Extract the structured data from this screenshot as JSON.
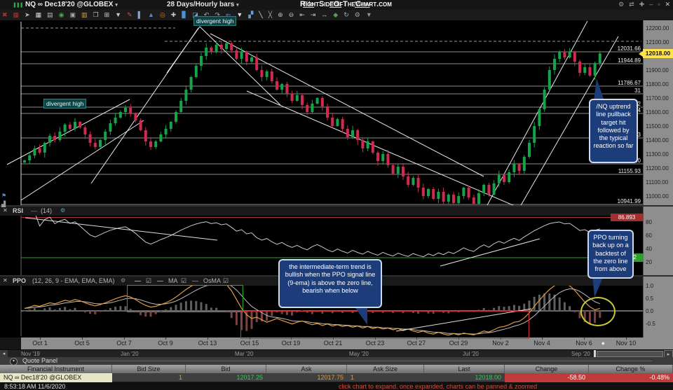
{
  "window": {
    "symbol_button": "NQ ∞ Dec18'20 @GLOBEX",
    "timeframe_button": "28 Days/Hourly bars",
    "dropdown_glyph": "▾",
    "menus": [
      "File",
      "Edit",
      "View"
    ],
    "logo": "RightSideOfTheChart.com",
    "window_icons": [
      {
        "name": "settings-icon",
        "glyph": "⚙"
      },
      {
        "name": "link-icon",
        "glyph": "⇄"
      },
      {
        "name": "pin-icon",
        "glyph": "✚"
      },
      {
        "name": "minimize-icon",
        "glyph": "–"
      },
      {
        "name": "restore-icon",
        "glyph": "▫"
      },
      {
        "name": "close-icon",
        "glyph": "✕"
      }
    ]
  },
  "toolbar": {
    "icons": [
      {
        "name": "delete-icon",
        "glyph": "✖",
        "color": "#b03030"
      },
      {
        "name": "grid-red-icon",
        "glyph": "▦",
        "color": "#b03030"
      },
      {
        "name": "pointer-icon",
        "glyph": "➤",
        "color": "#b8b8b8"
      },
      {
        "name": "grid-icon",
        "glyph": "▦",
        "color": "#d8d8d8"
      },
      {
        "name": "print-icon",
        "glyph": "▤",
        "color": "#b8b8b8"
      },
      {
        "name": "globe-icon",
        "glyph": "◉",
        "color": "#5a9a5a"
      },
      {
        "name": "camera-icon",
        "glyph": "▣",
        "color": "#a8a8a8"
      },
      {
        "name": "notebook-icon",
        "glyph": "▥",
        "color": "#caa84a"
      },
      {
        "name": "pages-icon",
        "glyph": "❐",
        "color": "#a8c0d8"
      },
      {
        "name": "layout-grid-icon",
        "glyph": "⊞",
        "color": "#d0d0d0"
      },
      {
        "name": "dropdown-icon",
        "glyph": "▼",
        "color": "#c8c8c8"
      },
      {
        "name": "edit-note-icon",
        "glyph": "✎",
        "color": "#d05050"
      },
      {
        "name": "volume-bars-icon",
        "glyph": "▌",
        "color": "#88a8c8"
      },
      {
        "name": "indicator-icon",
        "glyph": "▲",
        "color": "#4a90d9"
      },
      {
        "name": "target-icon",
        "glyph": "◎",
        "color": "#d08030"
      },
      {
        "name": "crosshair-icon",
        "glyph": "✚",
        "color": "#c8c8c8"
      },
      {
        "name": "column-chart-icon",
        "glyph": "▊",
        "color": "#4a90d9"
      },
      {
        "name": "area-chart-icon",
        "glyph": "◪",
        "color": "#7ab0e0"
      },
      {
        "name": "undo-icon",
        "glyph": "↶",
        "color": "#9ab0c8"
      },
      {
        "name": "redo-icon",
        "glyph": "↷",
        "color": "#9ab0c8"
      },
      {
        "name": "back-arrow-icon",
        "glyph": "⇐",
        "color": "#4a90d9"
      },
      {
        "name": "filter-icon",
        "glyph": "▼",
        "color": "#e0e0e0"
      },
      {
        "name": "chart-type-icon",
        "glyph": "▞",
        "color": "#6aa0d0"
      },
      {
        "name": "trendline-icon",
        "glyph": "╲",
        "color": "#e8e8e8"
      },
      {
        "name": "ray-icon",
        "glyph": "╳",
        "color": "#b0b0b0"
      },
      {
        "name": "zoom-in-icon",
        "glyph": "⊕",
        "color": "#c0c0c0"
      },
      {
        "name": "zoom-out-icon",
        "glyph": "⊖",
        "color": "#c0c0c0"
      },
      {
        "name": "expand-left-icon",
        "glyph": "⇤",
        "color": "#c0c0c0"
      },
      {
        "name": "expand-right-icon",
        "glyph": "⇥",
        "color": "#c0c0c0"
      },
      {
        "name": "fit-width-icon",
        "glyph": "↔",
        "color": "#c0c0c0"
      },
      {
        "name": "shapes-icon",
        "glyph": "◆",
        "color": "#5a9a5a"
      },
      {
        "name": "refresh-icon",
        "glyph": "↻",
        "color": "#9ab0c8"
      },
      {
        "name": "settings-wrench-icon",
        "glyph": "⚙",
        "color": "#a0a0a0"
      },
      {
        "name": "more-dropdown-icon",
        "glyph": "▼",
        "color": "#909090"
      }
    ]
  },
  "chart_data": [
    {
      "type": "candlestick",
      "title": "NQ ∞ Dec18'20 @GLOBEX, 28 Days/Hourly bars",
      "x_tick_labels": [
        "Oct 1",
        "Oct 5",
        "Oct 7",
        "Oct 9",
        "Oct 13",
        "Oct 15",
        "Oct 19",
        "Oct 21",
        "Oct 23",
        "Oct 27",
        "Oct 29",
        "Nov 2",
        "Nov 4",
        "Nov 6",
        "Nov 10"
      ],
      "y_axis_ticks": [
        12200,
        12100,
        12000,
        11900,
        11800,
        11700,
        11600,
        11500,
        11400,
        11300,
        11200,
        11100,
        11000
      ],
      "ylim": [
        10900,
        12255
      ],
      "closes": [
        11255,
        11290,
        11340,
        11310,
        11380,
        11430,
        11400,
        11460,
        11510,
        11480,
        11530,
        11490,
        11440,
        11380,
        11350,
        11400,
        11460,
        11520,
        11560,
        11600,
        11630,
        11590,
        11540,
        11470,
        11390,
        11350,
        11390,
        11440,
        11480,
        11530,
        11600,
        11680,
        11760,
        11850,
        11930,
        12000,
        12060,
        12030,
        12080,
        12050,
        12090,
        12040,
        11980,
        12030,
        11960,
        11990,
        11900,
        11850,
        11890,
        11820,
        11760,
        11800,
        11730,
        11680,
        11720,
        11650,
        11600,
        11660,
        11700,
        11640,
        11560,
        11500,
        11550,
        11480,
        11420,
        11470,
        11400,
        11340,
        11390,
        11310,
        11250,
        11300,
        11220,
        11160,
        11210,
        11140,
        11080,
        11130,
        11060,
        11000,
        11050,
        10980,
        11030,
        10960,
        11010,
        10950,
        11000,
        11060,
        10990,
        10945,
        11020,
        11080,
        11010,
        11090,
        11150,
        11100,
        11170,
        11230,
        11180,
        11280,
        11380,
        11500,
        11620,
        11760,
        11900,
        11980,
        12030,
        11990,
        12030,
        11960,
        11880,
        11920,
        11860,
        11950,
        12018
      ],
      "current_price_label": "12018.00",
      "price_level_labels": [
        {
          "label": "12031.66",
          "y": 74
        },
        {
          "label": "11944.89",
          "y": 91
        },
        {
          "label": "11786.67",
          "y": 123
        },
        {
          "label": "31",
          "y": 134,
          "partial": true
        },
        {
          "label": "82",
          "y": 153,
          "partial": true
        },
        {
          "label": "34",
          "y": 162,
          "partial": true
        },
        {
          "label": "93",
          "y": 197,
          "partial": true
        },
        {
          "label": "11228.10",
          "y": 234
        },
        {
          "label": "11155.93",
          "y": 249
        },
        {
          "label": "10941.99",
          "y": 292
        }
      ],
      "trendlines": [
        [
          10,
          206,
          185,
          113
        ],
        [
          30,
          257,
          205,
          143
        ],
        [
          130,
          233,
          283,
          11
        ],
        [
          238,
          75,
          285,
          9
        ],
        [
          285,
          9,
          400,
          121
        ],
        [
          300,
          19,
          690,
          223
        ],
        [
          352,
          101,
          748,
          271
        ],
        [
          695,
          264,
          838,
          1
        ],
        [
          742,
          266,
          882,
          23
        ]
      ],
      "dashed_lines": [
        [
          30,
          11,
          250,
          11
        ],
        [
          235,
          30,
          915,
          30
        ]
      ]
    },
    {
      "type": "line",
      "name": "RSI",
      "params": "(14)",
      "legend_dash": "—",
      "y_axis_ticks": [
        80,
        60,
        40,
        20
      ],
      "high_level_label": "86.893",
      "green_level_label": "26.82",
      "source": "computed from price closes, period 14",
      "trendlines": [
        [
          36,
          16,
          310,
          48
        ],
        [
          628,
          85,
          770,
          46
        ]
      ]
    },
    {
      "type": "line+histogram",
      "name": "PPO",
      "params": "(12, 26, 9 - EMA, EMA, EMA)",
      "ma_label": "MA",
      "osma_label": "OsMA",
      "legend_dash": "—",
      "y_axis_ticks": [
        "1.0",
        "0.5",
        "0.0",
        "-0.5"
      ],
      "values": [
        0.1,
        0.15,
        0.22,
        0.18,
        0.25,
        0.32,
        0.28,
        0.35,
        0.42,
        0.38,
        0.45,
        0.4,
        0.32,
        0.25,
        0.2,
        0.25,
        0.32,
        0.4,
        0.48,
        0.55,
        0.6,
        0.55,
        0.45,
        0.32,
        0.22,
        0.15,
        0.18,
        0.25,
        0.32,
        0.42,
        0.55,
        0.7,
        0.85,
        0.98,
        1.08,
        1.15,
        1.18,
        1.12,
        1.15,
        1.1,
        1.05,
        0.8,
        0.45,
        0.1,
        -0.15,
        -0.3,
        -0.25,
        -0.35,
        -0.45,
        -0.38,
        -0.3,
        -0.38,
        -0.45,
        -0.52,
        -0.45,
        -0.4,
        -0.48,
        -0.55,
        -0.5,
        -0.58,
        -0.52,
        -0.6,
        -0.55,
        -0.62,
        -0.58,
        -0.65,
        -0.6,
        -0.68,
        -0.62,
        -0.7,
        -0.65,
        -0.72,
        -0.68,
        -0.75,
        -0.7,
        -0.78,
        -0.72,
        -0.8,
        -0.85,
        -0.8,
        -0.88,
        -0.92,
        -0.85,
        -0.92,
        -0.96,
        -0.9,
        -0.95,
        -0.88,
        -0.92,
        -0.95,
        -0.88,
        -0.8,
        -0.84,
        -0.75,
        -0.65,
        -0.62,
        -0.55,
        -0.45,
        -0.42,
        -0.28,
        -0.08,
        0.18,
        0.42,
        0.65,
        0.85,
        1.0,
        1.08,
        1.05,
        1.0,
        0.82,
        0.58,
        0.35,
        0.16,
        0.04,
        0.1
      ],
      "trendline": [
        565,
        78,
        758,
        46
      ]
    }
  ],
  "annotations": {
    "divergent_high_1": "divergent high",
    "divergent_high_2": "divergent high",
    "callout_uptrend": "/NQ uptrend line pullback target hit followed by the typical reaction so far",
    "callout_ppo": "PPO turning back up on a backtest of the zero line from above",
    "callout_trend": "the intermediate-term trend is bullish when the PPO signal line (9-ema) is above the zero line, bearish when below"
  },
  "range_bar": {
    "months": [
      "Nov '19",
      "Jan '20",
      "Mar '20",
      "May '20",
      "Jul '20",
      "Sep '20"
    ],
    "left_arrow": "◂",
    "right_arrow": "▸"
  },
  "quote_panel": {
    "title": "Quote Panel",
    "headers": [
      "Financial Instrument",
      "Bid Size",
      "Bid",
      "Ask",
      "Ask Size",
      "Last",
      "Change",
      "Change %"
    ],
    "row": {
      "instrument": "NQ ∞ Dec18'20 @GLOBEX",
      "bid_size": "1",
      "bid": "12017.25",
      "ask": "12017.75",
      "ask_size": "1",
      "last": "12018.00",
      "change": "-58.50",
      "change_pct": "-0.48%"
    },
    "icons": [
      {
        "name": "magnifier-icon",
        "glyph": "⊕",
        "color": "#b8b8b8"
      },
      {
        "name": "close-panel-icon",
        "glyph": "✕",
        "color": "#c04040"
      }
    ]
  },
  "status_bar": {
    "time": "8:53:18 AM 11/6/2020",
    "hint": "click chart to expand. once expanded, charts can be panned & zoomed"
  },
  "colors": {
    "candle_up": "#17a34a",
    "candle_down": "#d12a4e",
    "ppo_line": "#e39b3b",
    "signal_line": "#bdbdbd",
    "rsi_line": "#c9c9c9",
    "accent_yellow": "#ffe34d",
    "callout_bg": "#1c3d7a",
    "level_green": "#2e9e2e",
    "level_red": "#a32e2e"
  }
}
